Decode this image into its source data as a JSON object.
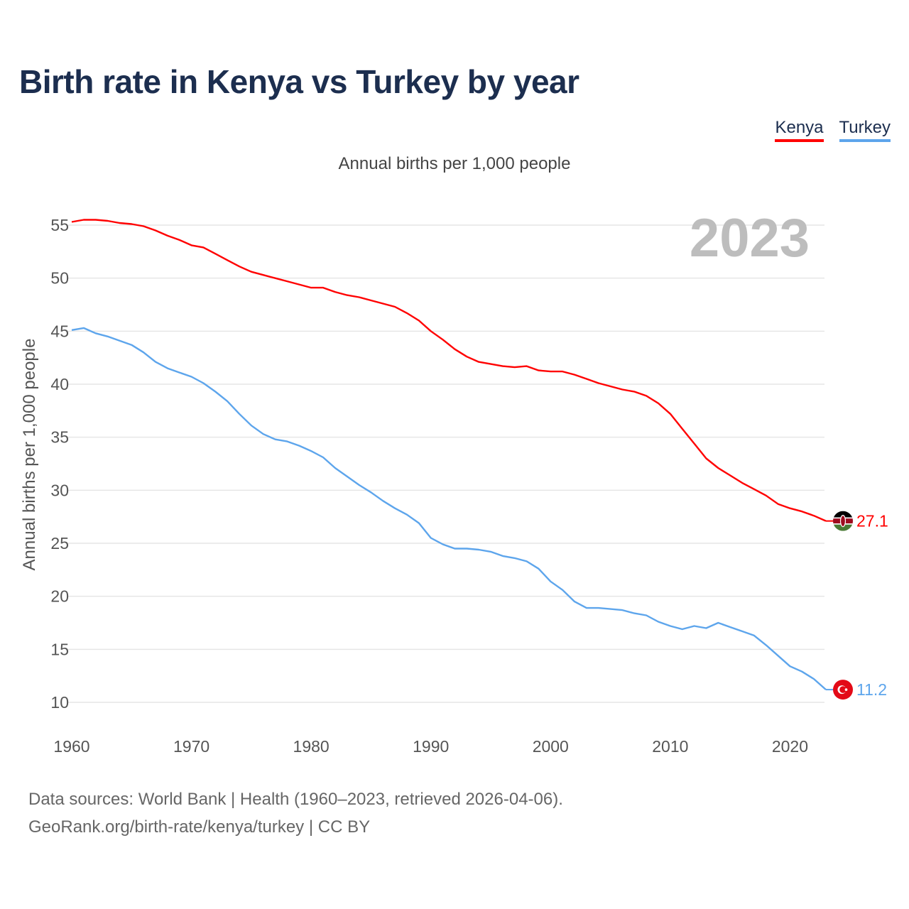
{
  "chart_data": {
    "type": "line",
    "title": "Birth rate in Kenya vs Turkey by year",
    "subtitle": "Annual births per 1,000 people",
    "ylabel": "Annual births per 1,000 people",
    "xlabel": "",
    "highlight_year": "2023",
    "ylim": [
      10,
      55
    ],
    "xlim": [
      1960,
      2023
    ],
    "yticks": [
      10,
      15,
      20,
      25,
      30,
      35,
      40,
      45,
      50,
      55
    ],
    "xticks": [
      1960,
      1970,
      1980,
      1990,
      2000,
      2010,
      2020
    ],
    "grid": true,
    "legend_position": "top-right",
    "x": [
      1960,
      1961,
      1962,
      1963,
      1964,
      1965,
      1966,
      1967,
      1968,
      1969,
      1970,
      1971,
      1972,
      1973,
      1974,
      1975,
      1976,
      1977,
      1978,
      1979,
      1980,
      1981,
      1982,
      1983,
      1984,
      1985,
      1986,
      1987,
      1988,
      1989,
      1990,
      1991,
      1992,
      1993,
      1994,
      1995,
      1996,
      1997,
      1998,
      1999,
      2000,
      2001,
      2002,
      2003,
      2004,
      2005,
      2006,
      2007,
      2008,
      2009,
      2010,
      2011,
      2012,
      2013,
      2014,
      2015,
      2016,
      2017,
      2018,
      2019,
      2020,
      2021,
      2022,
      2023
    ],
    "series": [
      {
        "name": "Kenya",
        "color": "#ff0000",
        "end_label": "27.1",
        "flag": "kenya-flag",
        "values": [
          55.3,
          55.5,
          55.5,
          55.4,
          55.2,
          55.1,
          54.9,
          54.5,
          54.0,
          53.6,
          53.1,
          52.9,
          52.3,
          51.7,
          51.1,
          50.6,
          50.3,
          50.0,
          49.7,
          49.4,
          49.1,
          49.1,
          48.7,
          48.4,
          48.2,
          47.9,
          47.6,
          47.3,
          46.7,
          46.0,
          45.0,
          44.2,
          43.3,
          42.6,
          42.1,
          41.9,
          41.7,
          41.6,
          41.7,
          41.3,
          41.2,
          41.2,
          40.9,
          40.5,
          40.1,
          39.8,
          39.5,
          39.3,
          38.9,
          38.2,
          37.2,
          35.8,
          34.4,
          33.0,
          32.1,
          31.4,
          30.7,
          30.1,
          29.5,
          28.7,
          28.3,
          28.0,
          27.6,
          27.1
        ]
      },
      {
        "name": "Turkey",
        "color": "#5da5ec",
        "end_label": "11.2",
        "flag": "turkey-flag",
        "values": [
          45.1,
          45.3,
          44.8,
          44.5,
          44.1,
          43.7,
          43.0,
          42.1,
          41.5,
          41.1,
          40.7,
          40.1,
          39.3,
          38.4,
          37.2,
          36.1,
          35.3,
          34.8,
          34.6,
          34.2,
          33.7,
          33.1,
          32.1,
          31.3,
          30.5,
          29.8,
          29.0,
          28.3,
          27.7,
          26.9,
          25.5,
          24.9,
          24.5,
          24.5,
          24.4,
          24.2,
          23.8,
          23.6,
          23.3,
          22.6,
          21.4,
          20.6,
          19.5,
          18.9,
          18.9,
          18.8,
          18.7,
          18.4,
          18.2,
          17.6,
          17.2,
          16.9,
          17.2,
          17.0,
          17.5,
          17.1,
          16.7,
          16.3,
          15.4,
          14.4,
          13.4,
          12.9,
          12.2,
          11.2
        ]
      }
    ]
  },
  "footer": {
    "line1": "Data sources: World Bank | Health (1960–2023, retrieved 2026-04-06).",
    "line2": "GeoRank.org/birth-rate/kenya/turkey | CC BY"
  }
}
